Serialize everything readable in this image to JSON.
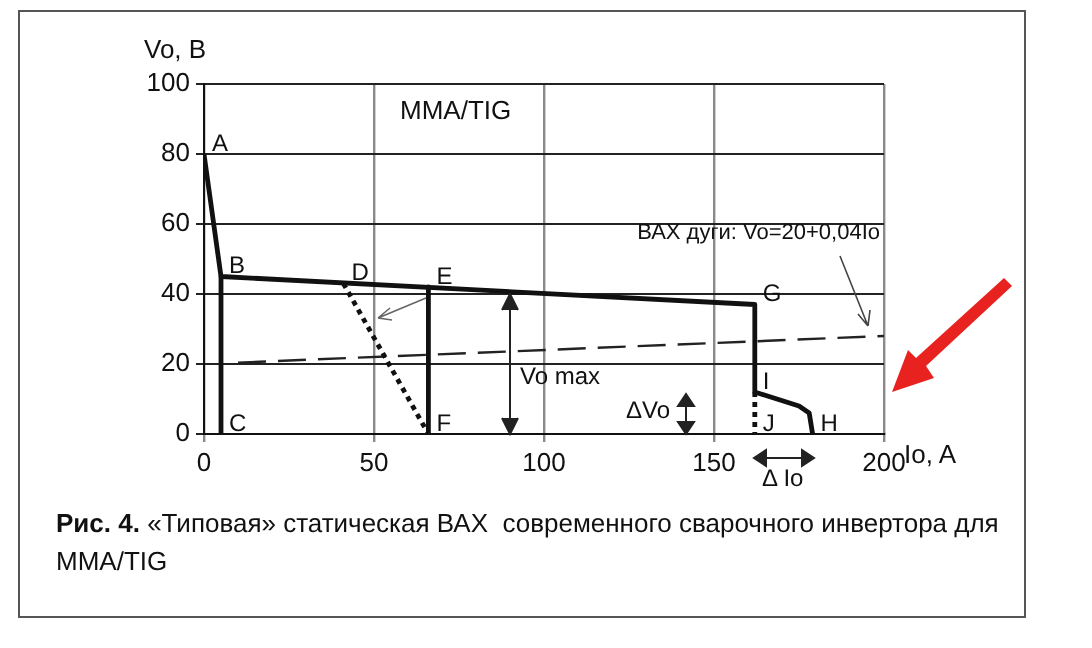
{
  "chart_data": {
    "type": "line",
    "title": "MMA/TIG",
    "xlabel": "Io, A",
    "ylabel": "Vo, B",
    "xlim": [
      0,
      200
    ],
    "xticks": [
      0,
      50,
      100,
      150,
      200
    ],
    "ylim": [
      0,
      100
    ],
    "yticks": [
      0,
      20,
      40,
      60,
      80,
      100
    ],
    "grid": true,
    "legend": false,
    "marker": "none",
    "series": [
      {
        "color": "#111111",
        "line_style": "solid",
        "x": [
          0,
          5,
          162,
          162,
          175,
          178,
          179
        ],
        "values": [
          80,
          45,
          37,
          12,
          8,
          6,
          0
        ]
      },
      {
        "color": "#111111",
        "line_style": "solid",
        "x": [
          5,
          5
        ],
        "values": [
          45,
          0
        ]
      },
      {
        "color": "#111111",
        "line_style": "solid",
        "x": [
          66,
          66
        ],
        "values": [
          42,
          0
        ]
      },
      {
        "color": "#111111",
        "line_style": "dotted",
        "x": [
          41,
          66
        ],
        "values": [
          43,
          0
        ]
      },
      {
        "color": "#111111",
        "line_style": "dotted",
        "x": [
          162,
          162
        ],
        "values": [
          12,
          0
        ]
      },
      {
        "name": "ВАХ дуги: Vo=20+0,04Io",
        "color": "#222222",
        "line_style": "dashed",
        "x": [
          10,
          200
        ],
        "values": [
          20.4,
          28
        ]
      }
    ],
    "annotations": [
      {
        "text": "A",
        "x": 0,
        "y": 80
      },
      {
        "text": "B",
        "x": 5,
        "y": 45
      },
      {
        "text": "C",
        "x": 5,
        "y": 0
      },
      {
        "text": "D",
        "x": 41,
        "y": 43
      },
      {
        "text": "E",
        "x": 66,
        "y": 42
      },
      {
        "text": "F",
        "x": 66,
        "y": 0
      },
      {
        "text": "G",
        "x": 162,
        "y": 37
      },
      {
        "text": "H",
        "x": 179,
        "y": 0
      },
      {
        "text": "I",
        "x": 162,
        "y": 12
      },
      {
        "text": "J",
        "x": 162,
        "y": 0
      },
      "Vo max",
      "ΔVo",
      "Δ Io",
      "Рис. 4.",
      "«Типовая» статическая ВАХ  современного сварочного инвертора для MMA/TIG"
    ]
  }
}
